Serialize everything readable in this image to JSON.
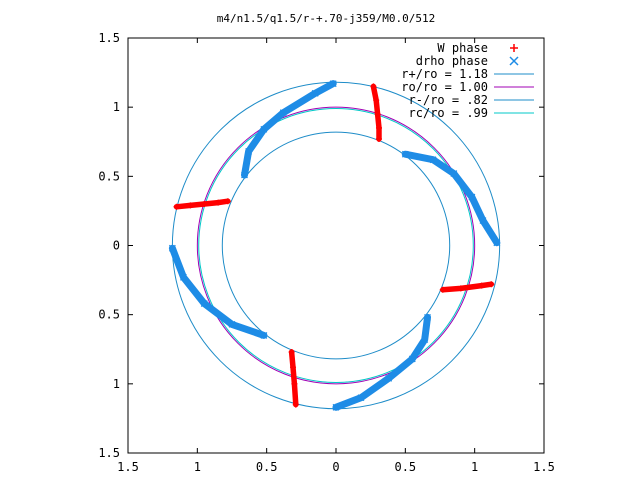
{
  "chart_data": {
    "type": "scatter",
    "title": "m4/n1.5/q1.5/r-+.70-j359/M0.0/512",
    "xlabel": "",
    "ylabel": "",
    "xlim": [
      -1.5,
      1.5
    ],
    "ylim": [
      -1.5,
      1.5
    ],
    "x_ticks": [
      -1.5,
      -1,
      -0.5,
      0,
      0.5,
      1,
      1.5
    ],
    "y_ticks": [
      -1.5,
      -1,
      -0.5,
      0,
      0.5,
      1,
      1.5
    ],
    "x_tick_labels": [
      "1.5",
      "1",
      "0.5",
      "0",
      "0.5",
      "1",
      "1.5"
    ],
    "y_tick_labels": [
      "1.5",
      "1",
      "0.5",
      "0",
      "0.5",
      "1",
      "1.5"
    ],
    "grid": false,
    "legend_position": "top-right",
    "colors": {
      "w_phase": "#ff0000",
      "drho_phase": "#1e8ce6",
      "r_plus": "#1e8cc8",
      "r_o": "#a000b4",
      "r_minus": "#1e8cc8",
      "r_c": "#00c8c8"
    },
    "circles": [
      {
        "label": "r+/ro = 1.18",
        "radius": 1.18,
        "color_key": "r_plus"
      },
      {
        "label": "ro/ro = 1.00",
        "radius": 1.0,
        "color_key": "r_o"
      },
      {
        "label": "r-/ro = .82",
        "radius": 0.82,
        "color_key": "r_minus"
      },
      {
        "label": "rc/ro = .99",
        "radius": 0.99,
        "color_key": "r_c"
      }
    ],
    "series": [
      {
        "name": "W phase",
        "marker": "+",
        "color_key": "w_phase",
        "segments": [
          [
            [
              0.27,
              1.15
            ],
            [
              0.29,
              1.05
            ],
            [
              0.3,
              0.95
            ],
            [
              0.31,
              0.85
            ],
            [
              0.31,
              0.77
            ]
          ],
          [
            [
              -1.15,
              0.28
            ],
            [
              -1.05,
              0.29
            ],
            [
              -0.95,
              0.3
            ],
            [
              -0.85,
              0.31
            ],
            [
              -0.78,
              0.32
            ]
          ],
          [
            [
              -0.32,
              -0.77
            ],
            [
              -0.31,
              -0.88
            ],
            [
              -0.3,
              -1.0
            ],
            [
              -0.29,
              -1.15
            ]
          ],
          [
            [
              0.77,
              -0.32
            ],
            [
              0.9,
              -0.31
            ],
            [
              1.05,
              -0.29
            ],
            [
              1.12,
              -0.28
            ]
          ]
        ]
      },
      {
        "name": "drho phase",
        "marker": "x",
        "color_key": "drho_phase",
        "segments": [
          [
            [
              -0.66,
              0.51
            ],
            [
              -0.63,
              0.68
            ],
            [
              -0.52,
              0.84
            ],
            [
              -0.38,
              0.96
            ],
            [
              -0.15,
              1.1
            ],
            [
              -0.02,
              1.17
            ]
          ],
          [
            [
              0.5,
              0.66
            ],
            [
              0.7,
              0.62
            ],
            [
              0.85,
              0.52
            ],
            [
              0.98,
              0.35
            ],
            [
              1.06,
              0.18
            ],
            [
              1.16,
              0.02
            ]
          ],
          [
            [
              -1.18,
              -0.02
            ],
            [
              -1.1,
              -0.23
            ],
            [
              -0.95,
              -0.42
            ],
            [
              -0.75,
              -0.57
            ],
            [
              -0.52,
              -0.65
            ]
          ],
          [
            [
              0.0,
              -1.17
            ],
            [
              0.18,
              -1.1
            ],
            [
              0.38,
              -0.96
            ],
            [
              0.55,
              -0.82
            ],
            [
              0.64,
              -0.68
            ],
            [
              0.66,
              -0.52
            ]
          ]
        ]
      }
    ]
  }
}
